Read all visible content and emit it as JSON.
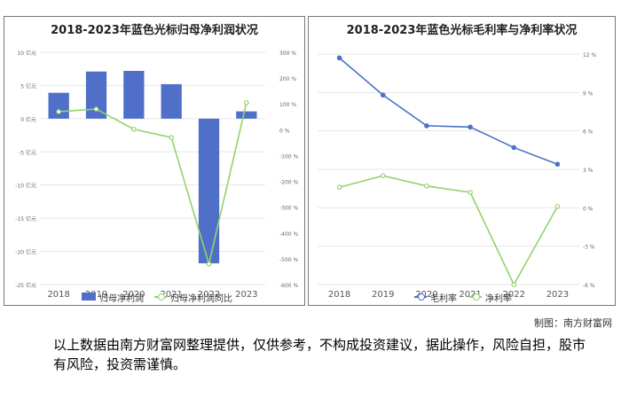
{
  "charts": {
    "left": {
      "title": "2018-2023年蓝色光标归母净利润状况",
      "legend": [
        "归母净利润",
        "归母净利润同比"
      ]
    },
    "right": {
      "title": "2018-2023年蓝色光标毛利率与净利率状况",
      "legend": [
        "毛利率",
        "净利率"
      ]
    }
  },
  "credit": "制图：南方财富网",
  "disclaimer": "以上数据由南方财富网整理提供，仅供参考，不构成投资建议，据此操作，风险自担，股市有风险，投资需谨慎。",
  "colors": {
    "bar": "#4f6fc9",
    "green": "#92d36e",
    "blue": "#4a72c6",
    "grid": "#e6e6e6"
  },
  "chart_data": [
    {
      "type": "bar+line",
      "categories": [
        "2018",
        "2019",
        "2020",
        "2021",
        "2022",
        "2023"
      ],
      "series": [
        {
          "name": "归母净利润",
          "type": "bar",
          "axis": "left",
          "values": [
            3.9,
            7.1,
            7.2,
            5.2,
            -21.8,
            1.1
          ]
        },
        {
          "name": "归母净利润同比",
          "type": "line",
          "axis": "right",
          "values": [
            70,
            80,
            2,
            -30,
            -520,
            105
          ]
        }
      ],
      "y_left": {
        "ylim": [
          -25,
          10
        ],
        "ticks": [
          10,
          5,
          0,
          -5,
          -10,
          -15,
          -20,
          -25
        ],
        "tick_labels": [
          "10 亿元",
          "5 亿元",
          "0 亿元",
          "-5 亿元",
          "-10 亿元",
          "-15 亿元",
          "-20 亿元",
          "-25 亿元"
        ]
      },
      "y_right": {
        "ylim": [
          -600,
          300
        ],
        "ticks": [
          300,
          200,
          100,
          0,
          -100,
          -200,
          -300,
          -400,
          -500,
          -600
        ],
        "tick_labels": [
          "300 %",
          "200 %",
          "100 %",
          "0 %",
          "-100 %",
          "-200 %",
          "-300 %",
          "-400 %",
          "-500 %",
          "-600 %"
        ]
      },
      "grid": true,
      "legend_position": "bottom"
    },
    {
      "type": "line",
      "categories": [
        "2018",
        "2019",
        "2020",
        "2021",
        "2022",
        "2023"
      ],
      "series": [
        {
          "name": "毛利率",
          "values": [
            11.7,
            8.8,
            6.4,
            6.3,
            4.7,
            3.4
          ]
        },
        {
          "name": "净利率",
          "values": [
            1.6,
            2.5,
            1.7,
            1.2,
            -6.0,
            0.1
          ]
        }
      ],
      "y_right": {
        "ylim": [
          -6,
          12
        ],
        "ticks": [
          12,
          9,
          6,
          3,
          0,
          -3,
          -6
        ],
        "tick_labels": [
          "12 %",
          "9 %",
          "6 %",
          "3 %",
          "0 %",
          "-3 %",
          "-6 %"
        ]
      },
      "grid": true,
      "legend_position": "bottom"
    }
  ]
}
